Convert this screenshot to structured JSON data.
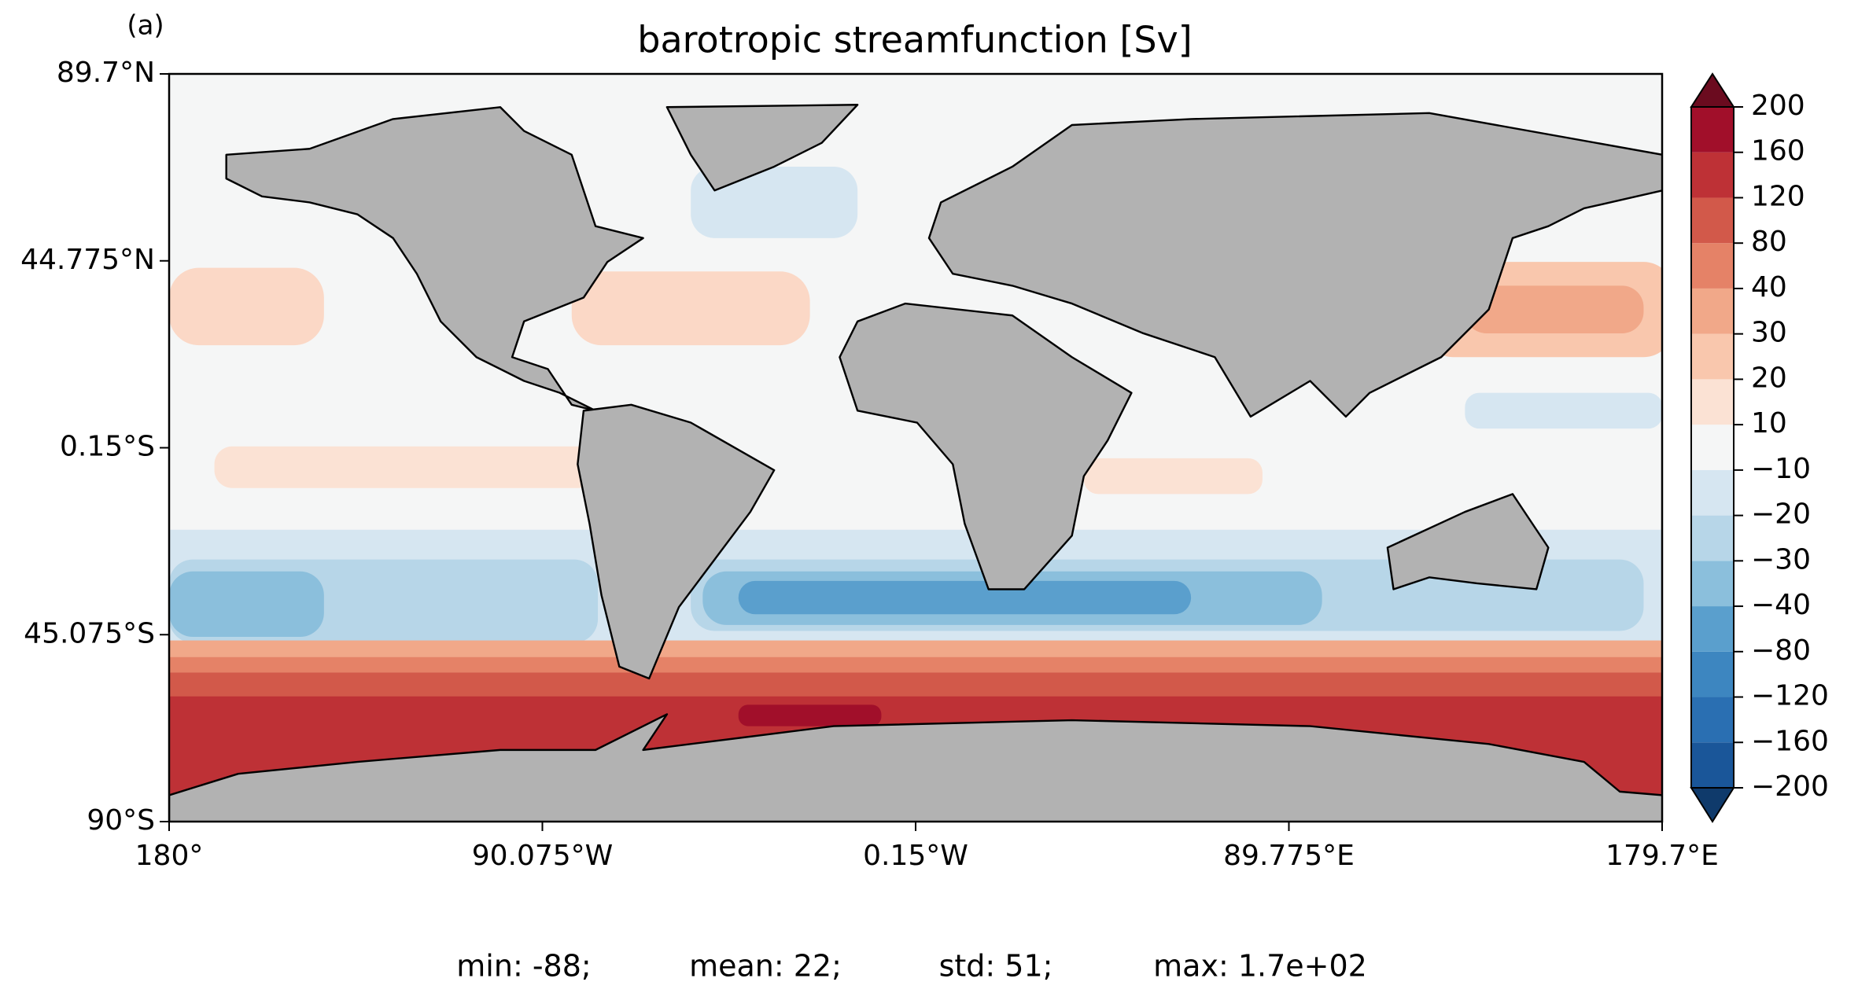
{
  "chart_data": {
    "type": "map",
    "label": "(a)",
    "title": "barotropic streamfunction [Sv]",
    "xlim": [
      -180,
      179.7
    ],
    "ylim": [
      -90,
      89.7
    ],
    "xticks": [
      {
        "value": -180,
        "label": "180°"
      },
      {
        "value": -90.075,
        "label": "90.075°W"
      },
      {
        "value": -0.15,
        "label": "0.15°W"
      },
      {
        "value": 89.775,
        "label": "89.775°E"
      },
      {
        "value": 179.7,
        "label": "179.7°E"
      }
    ],
    "yticks": [
      {
        "value": -90,
        "label": "90°S"
      },
      {
        "value": -45.075,
        "label": "45.075°S"
      },
      {
        "value": -0.15,
        "label": "0.15°S"
      },
      {
        "value": 44.775,
        "label": "44.775°N"
      },
      {
        "value": 89.7,
        "label": "89.7°N"
      }
    ],
    "colorbar": {
      "levels": [
        {
          "value": -200,
          "label": "−200"
        },
        {
          "value": -160,
          "label": "−160"
        },
        {
          "value": -120,
          "label": "−120"
        },
        {
          "value": -80,
          "label": "−80"
        },
        {
          "value": -40,
          "label": "−40"
        },
        {
          "value": -30,
          "label": "−30"
        },
        {
          "value": -20,
          "label": "−20"
        },
        {
          "value": -10,
          "label": "−10"
        },
        10,
        20,
        30,
        40,
        80,
        120,
        160,
        200
      ],
      "colors": [
        "#0f3a6b",
        "#1a5699",
        "#2a6fb2",
        "#3d86c0",
        "#5a9fcd",
        "#8bbfdc",
        "#b7d6e8",
        "#d6e6f1",
        "#f5f6f6",
        "#fbe2d4",
        "#f9c7ad",
        "#f1a889",
        "#e58267",
        "#d2594a",
        "#be3136",
        "#a10f2a",
        "#6b0b1f"
      ]
    },
    "stats": [
      "min: -88;",
      "mean: 22;",
      "std: 51;",
      "max: 1.7e+02"
    ]
  }
}
